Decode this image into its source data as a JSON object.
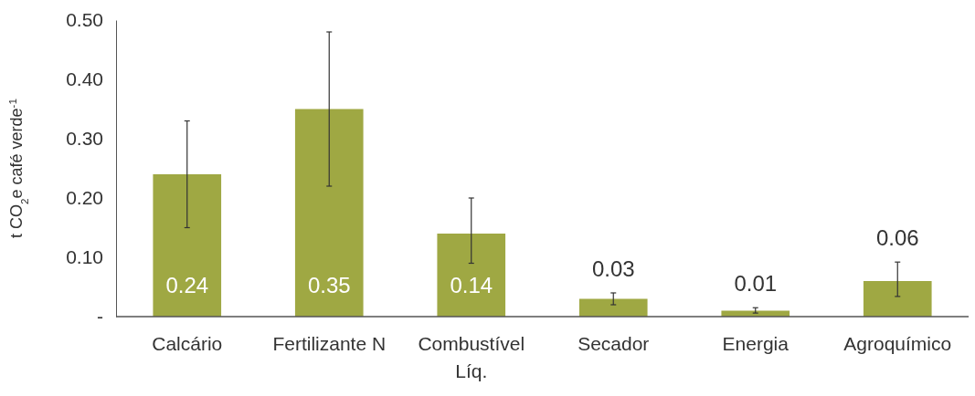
{
  "chart_data": {
    "type": "bar",
    "ylabel": "t CO$_{2}$e café verde$^{-1}$",
    "categories": [
      "Calcário",
      "Fertilizante N",
      "Combustível Líq.",
      "Secador",
      "Energia",
      "Agroquímico"
    ],
    "values": [
      0.24,
      0.35,
      0.14,
      0.03,
      0.01,
      0.06
    ],
    "errors": [
      [
        0.15,
        0.33
      ],
      [
        0.22,
        0.48
      ],
      [
        0.09,
        0.2
      ],
      [
        0.02,
        0.04
      ],
      [
        0.006,
        0.015
      ],
      [
        0.034,
        0.092
      ]
    ],
    "value_labels": [
      "0.24",
      "0.35",
      "0.14",
      "0.03",
      "0.01",
      "0.06"
    ],
    "color": "#9fa843",
    "ylim": [
      0,
      0.5
    ],
    "yticks": [
      {
        "value": 0,
        "label": "-"
      },
      {
        "value": 0.1,
        "label": "0.10"
      },
      {
        "value": 0.2,
        "label": "0.20"
      },
      {
        "value": 0.3,
        "label": "0.30"
      },
      {
        "value": 0.4,
        "label": "0.40"
      },
      {
        "value": 0.5,
        "label": "0.50"
      }
    ],
    "grid": false
  }
}
